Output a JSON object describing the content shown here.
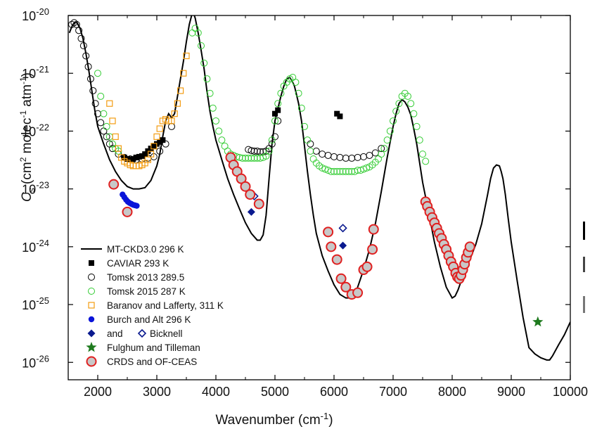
{
  "chart_data": {
    "type": "scatter",
    "title": "",
    "xlabel": "Wavenumber (cm",
    "xlabel_sup": "-1",
    "xlabel_end": ")",
    "ylabel_parts": {
      "c": "C",
      "s": "s",
      "a": " (cm",
      "b": "2",
      "d": " molec",
      "e": "-1",
      "f": " atm",
      "g": "-1",
      "h": ")"
    },
    "xlim": [
      1500,
      10000
    ],
    "ylim": [
      5e-27,
      1e-20
    ],
    "yscale": "log",
    "x_ticks": [
      2000,
      3000,
      4000,
      5000,
      6000,
      7000,
      8000,
      9000,
      10000
    ],
    "y_ticks": [
      {
        "base": "10",
        "exp": "-26",
        "value": 1e-26
      },
      {
        "base": "10",
        "exp": "-25",
        "value": 1e-25
      },
      {
        "base": "10",
        "exp": "-24",
        "value": 1e-24
      },
      {
        "base": "10",
        "exp": "-23",
        "value": 1e-23
      },
      {
        "base": "10",
        "exp": "-22",
        "value": 1e-22
      },
      {
        "base": "10",
        "exp": "-21",
        "value": 1e-21
      },
      {
        "base": "10",
        "exp": "-20",
        "value": 1e-20
      }
    ],
    "legend_position": "bottom-left",
    "legend": [
      {
        "label": "MT-CKD3.0 296 K",
        "marker": "line",
        "color": "#000000"
      },
      {
        "label": "CAVIAR  293 K",
        "marker": "square-filled",
        "color": "#000000"
      },
      {
        "label": "Tomsk 2013 289.5",
        "marker": "circle-open",
        "color": "#000000"
      },
      {
        "label": "Tomsk 2015 287 K",
        "marker": "circle-open",
        "color": "#33cc33"
      },
      {
        "label": "Baranov and Lafferty, 311 K",
        "marker": "square-open",
        "color": "#f39c12"
      },
      {
        "label": "Burch and Alt 296 K",
        "marker": "circle-filled",
        "color": "#0a14d9"
      },
      {
        "label": "and",
        "label2": "Bicknell",
        "marker": "diamond-pair",
        "color": "#0a1a8f"
      },
      {
        "label": "Fulghum and Tilleman",
        "marker": "star",
        "color": "#1e7a1e"
      },
      {
        "label": "CRDS and OF-CEAS",
        "marker": "circle-red",
        "color": "#e02020"
      }
    ],
    "series": [
      {
        "name": "MT-CKD3.0 296 K",
        "kind": "line",
        "color": "#000000",
        "x": [
          1520,
          1550,
          1580,
          1610,
          1650,
          1700,
          1750,
          1800,
          1850,
          1900,
          1950,
          2000,
          2100,
          2200,
          2300,
          2400,
          2500,
          2600,
          2700,
          2800,
          2900,
          3000,
          3050,
          3100,
          3150,
          3200,
          3250,
          3300,
          3350,
          3400,
          3450,
          3500,
          3550,
          3600,
          3620,
          3650,
          3700,
          3750,
          3800,
          3850,
          3900,
          3950,
          4000,
          4100,
          4200,
          4300,
          4400,
          4500,
          4600,
          4700,
          4750,
          4800,
          4850,
          4900,
          4950,
          5000,
          5100,
          5150,
          5200,
          5250,
          5300,
          5330,
          5360,
          5400,
          5450,
          5500,
          5550,
          5600,
          5650,
          5700,
          5800,
          5900,
          6000,
          6100,
          6200,
          6300,
          6350,
          6400,
          6500,
          6600,
          6700,
          6800,
          6900,
          7000,
          7050,
          7100,
          7150,
          7200,
          7250,
          7300,
          7350,
          7400,
          7450,
          7500,
          7600,
          7700,
          7800,
          7900,
          8000,
          8050,
          8100,
          8200,
          8300,
          8400,
          8500,
          8600,
          8650,
          8700,
          8750,
          8800,
          8830,
          8860,
          8900,
          8950,
          9000,
          9100,
          9200,
          9300,
          9400,
          9500,
          9600,
          9650,
          9700,
          9800,
          9900,
          10000
        ],
        "y": [
          5e-21,
          6e-21,
          7e-21,
          7.5e-21,
          7.5e-21,
          6e-21,
          4e-21,
          2.2e-21,
          1.1e-21,
          5e-22,
          2.3e-22,
          1.2e-22,
          6e-23,
          3.2e-23,
          2e-23,
          1.4e-23,
          1.1e-23,
          1e-23,
          1e-23,
          1.05e-23,
          1.4e-23,
          2.5e-23,
          4e-23,
          8e-23,
          1.5e-22,
          2e-22,
          1.7e-22,
          2e-22,
          4e-22,
          8e-22,
          1.6e-21,
          3.5e-21,
          7e-21,
          1.1e-20,
          1.1e-20,
          9e-21,
          5e-21,
          2.5e-21,
          1.2e-21,
          4.8e-22,
          2.2e-22,
          1.2e-22,
          7e-23,
          3.2e-23,
          1.5e-23,
          8e-24,
          4.5e-24,
          2.6e-24,
          1.7e-24,
          1.3e-24,
          1.3e-24,
          1.6e-24,
          3.5e-24,
          1.5e-23,
          6e-23,
          1.5e-22,
          4e-22,
          6e-22,
          8e-22,
          8.5e-22,
          7e-22,
          6e-22,
          4.5e-22,
          3e-22,
          1.5e-22,
          5.5e-23,
          2e-23,
          8e-24,
          3.5e-24,
          1.7e-24,
          7e-25,
          3.8e-25,
          2.2e-25,
          1.5e-25,
          1.3e-25,
          1.3e-25,
          1.5e-25,
          2e-25,
          4e-25,
          9e-25,
          2.5e-24,
          9e-24,
          3.5e-23,
          1.2e-22,
          2e-22,
          3e-22,
          3.5e-22,
          3.2e-22,
          2.6e-22,
          1.9e-22,
          1.1e-22,
          6e-23,
          2.8e-23,
          1.3e-23,
          4e-24,
          1.2e-24,
          4.5e-25,
          2e-25,
          1.3e-25,
          1.4e-25,
          1.8e-25,
          3.5e-25,
          6e-25,
          1.1e-24,
          2.5e-24,
          8e-24,
          1.5e-23,
          2.3e-23,
          2.6e-23,
          2.5e-23,
          2e-23,
          1.5e-23,
          8e-24,
          3e-24,
          1.2e-24,
          2.6e-25,
          6e-26,
          1.8e-26,
          1.4e-26,
          1.2e-26,
          1.1e-26,
          1.1e-26,
          1.3e-26,
          2e-26,
          3e-26,
          5e-26
        ]
      },
      {
        "name": "CAVIAR  293 K",
        "kind": "square-filled",
        "color": "#000000",
        "x": [
          2450,
          2500,
          2550,
          2600,
          2650,
          2700,
          2750,
          2800,
          2850,
          2900,
          2950,
          3000,
          3050,
          3100,
          5000,
          5050,
          6050,
          6100
        ],
        "y": [
          3.5e-23,
          3.3e-23,
          3.2e-23,
          3.3e-23,
          3.5e-23,
          3.6e-23,
          3.7e-23,
          4e-23,
          4.5e-23,
          5e-23,
          5.5e-23,
          6e-23,
          6.5e-23,
          7e-23,
          2e-22,
          2.3e-22,
          2e-22,
          1.8e-22
        ]
      },
      {
        "name": "Tomsk 2013 289.5",
        "kind": "circle-open",
        "color": "#000000",
        "x": [
          1560,
          1600,
          1640,
          1680,
          1720,
          1760,
          1800,
          1840,
          1880,
          1920,
          1960,
          2000,
          2050,
          2100,
          2150,
          2200,
          2250,
          2350,
          2450,
          2550,
          2650,
          2750,
          2850,
          2950,
          3050,
          3150,
          3250,
          4550,
          4600,
          4650,
          4700,
          4750,
          4800,
          4850,
          4900,
          4950,
          5000,
          5050,
          5600,
          5700,
          5800,
          5900,
          6000,
          6100,
          6200,
          6300,
          6400,
          6500,
          6600,
          6700,
          6800
        ],
        "y": [
          7e-21,
          7.5e-21,
          7e-21,
          5.5e-21,
          4e-21,
          3e-21,
          2e-21,
          1.3e-21,
          8e-22,
          5e-22,
          3e-22,
          2e-22,
          1.4e-22,
          1e-22,
          8e-23,
          6e-23,
          5e-23,
          4e-23,
          3.5e-23,
          3.3e-23,
          3.2e-23,
          3.3e-23,
          3.4e-23,
          3.6e-23,
          4.5e-23,
          6e-23,
          1.2e-22,
          4.8e-23,
          4.6e-23,
          4.5e-23,
          4.5e-23,
          4.4e-23,
          4.4e-23,
          4.5e-23,
          5e-23,
          6e-23,
          8e-23,
          1.5e-22,
          6e-23,
          4.5e-23,
          4e-23,
          3.8e-23,
          3.6e-23,
          3.5e-23,
          3.4e-23,
          3.4e-23,
          3.5e-23,
          3.6e-23,
          3.8e-23,
          4.2e-23,
          5e-23
        ]
      },
      {
        "name": "Tomsk 2015 287 K",
        "kind": "circle-open",
        "color": "#33cc33",
        "x": [
          2000,
          2050,
          2100,
          2150,
          2200,
          2250,
          2300,
          2350,
          3600,
          3650,
          3700,
          3750,
          3800,
          3850,
          3900,
          3950,
          4000,
          4050,
          4100,
          4150,
          4200,
          4250,
          4300,
          4350,
          4400,
          4450,
          4500,
          4550,
          4600,
          4650,
          4700,
          4750,
          4800,
          4850,
          4900,
          4950,
          5000,
          5050,
          5100,
          5150,
          5200,
          5250,
          5300,
          5350,
          5400,
          5450,
          5500,
          5550,
          5600,
          5650,
          5700,
          5750,
          5800,
          5850,
          5900,
          5950,
          6000,
          6050,
          6100,
          6150,
          6200,
          6250,
          6300,
          6350,
          6400,
          6450,
          6500,
          6550,
          6600,
          6650,
          6700,
          6750,
          6800,
          6850,
          6900,
          6950,
          7000,
          7050,
          7100,
          7150,
          7200,
          7250,
          7300,
          7350,
          7400,
          7450,
          7500,
          7550
        ],
        "y": [
          1e-21,
          4e-22,
          2e-22,
          1.2e-22,
          8e-23,
          6e-23,
          5e-23,
          4.5e-23,
          5e-21,
          6e-21,
          5e-21,
          3e-21,
          1.5e-21,
          8e-22,
          4.5e-22,
          2.5e-22,
          1.5e-22,
          1e-22,
          7e-23,
          5.5e-23,
          4.5e-23,
          4e-23,
          3.8e-23,
          3.6e-23,
          3.5e-23,
          3.4e-23,
          3.4e-23,
          3.4e-23,
          3.4e-23,
          3.4e-23,
          3.4e-23,
          3.4e-23,
          3.5e-23,
          3.7e-23,
          4.5e-23,
          7e-23,
          1.5e-22,
          3e-22,
          4.5e-22,
          6e-22,
          7e-22,
          8e-22,
          8.5e-22,
          7e-22,
          4.5e-22,
          2.5e-22,
          1.2e-22,
          7e-23,
          4.5e-23,
          3.3e-23,
          2.8e-23,
          2.5e-23,
          2.3e-23,
          2.2e-23,
          2.1e-23,
          2e-23,
          2e-23,
          2e-23,
          2e-23,
          2e-23,
          2e-23,
          2e-23,
          2e-23,
          2e-23,
          2.1e-23,
          2.1e-23,
          2.2e-23,
          2.3e-23,
          2.4e-23,
          2.6e-23,
          2.9e-23,
          3.3e-23,
          4e-23,
          5e-23,
          7e-23,
          1e-22,
          1.5e-22,
          2.2e-22,
          3e-22,
          4e-22,
          4.5e-22,
          4e-22,
          3e-22,
          2e-22,
          1.2e-22,
          7e-23,
          4e-23,
          3e-23
        ]
      },
      {
        "name": "Baranov and Lafferty, 311 K",
        "kind": "square-open",
        "color": "#f39c12",
        "x": [
          2200,
          2250,
          2300,
          2350,
          2400,
          2450,
          2500,
          2550,
          2600,
          2650,
          2700,
          2750,
          2800,
          2850,
          2900,
          2950,
          3000,
          3050,
          3100,
          3150,
          3200,
          3250,
          3300,
          3350,
          3400,
          3450,
          3500
        ],
        "y": [
          3e-22,
          1.5e-22,
          8e-23,
          5e-23,
          3.5e-23,
          3e-23,
          2.8e-23,
          2.6e-23,
          2.5e-23,
          2.5e-23,
          2.5e-23,
          2.6e-23,
          2.8e-23,
          3.2e-23,
          4e-23,
          5.5e-23,
          8e-23,
          1.1e-22,
          1.5e-22,
          1.6e-22,
          1.5e-22,
          1.5e-22,
          2e-22,
          3e-22,
          5e-22,
          1e-21,
          2e-21
        ]
      },
      {
        "name": "Burch and Alt 296 K",
        "kind": "circle-filled",
        "color": "#0a14d9",
        "x": [
          2420,
          2450,
          2480,
          2510,
          2540,
          2570,
          2600,
          2630,
          2660
        ],
        "y": [
          8e-24,
          7.2e-24,
          6.5e-24,
          6e-24,
          5.7e-24,
          5.5e-24,
          5.3e-24,
          5.2e-24,
          5.1e-24
        ]
      },
      {
        "name": "Bicknell filled",
        "kind": "diamond-filled",
        "color": "#0a1a8f",
        "x": [
          4600,
          6150
        ],
        "y": [
          4e-24,
          1.05e-24
        ]
      },
      {
        "name": "Bicknell open",
        "kind": "diamond-open",
        "color": "#0a1a8f",
        "x": [
          4650,
          6150
        ],
        "y": [
          7.5e-24,
          2.1e-24
        ]
      },
      {
        "name": "Fulghum and Tilleman",
        "kind": "star",
        "color": "#1e7a1e",
        "x": [
          9450
        ],
        "y": [
          5e-26
        ]
      },
      {
        "name": "CRDS and OF-CEAS",
        "kind": "circle-red",
        "color": "#e02020",
        "x": [
          2270,
          2500,
          4250,
          4300,
          4360,
          4430,
          4500,
          4580,
          4730,
          5900,
          5950,
          6050,
          6120,
          6200,
          6300,
          6400,
          6500,
          6560,
          6650,
          6670,
          7550,
          7580,
          7620,
          7660,
          7700,
          7740,
          7780,
          7820,
          7860,
          7900,
          7940,
          7980,
          8020,
          8060,
          8090,
          8120,
          8150,
          8180,
          8210,
          8240,
          8270,
          8300
        ],
        "y": [
          1.2e-23,
          4e-24,
          3.5e-23,
          2.6e-23,
          2e-23,
          1.5e-23,
          1.1e-23,
          8e-24,
          5.5e-24,
          1.8e-24,
          1e-24,
          6e-25,
          2.8e-25,
          2e-25,
          1.5e-25,
          1.6e-25,
          4e-25,
          4.5e-25,
          9e-25,
          2e-24,
          6e-24,
          5e-24,
          4e-24,
          3.2e-24,
          2.6e-24,
          2.1e-24,
          1.7e-24,
          1.4e-24,
          1.1e-24,
          9e-25,
          7e-25,
          5.5e-25,
          4.5e-25,
          3.5e-25,
          3e-25,
          2.8e-25,
          3.2e-25,
          4e-25,
          5e-25,
          6.5e-25,
          8e-25,
          1e-24
        ]
      }
    ]
  },
  "overflow_marks": [
    "",
    "",
    ""
  ]
}
